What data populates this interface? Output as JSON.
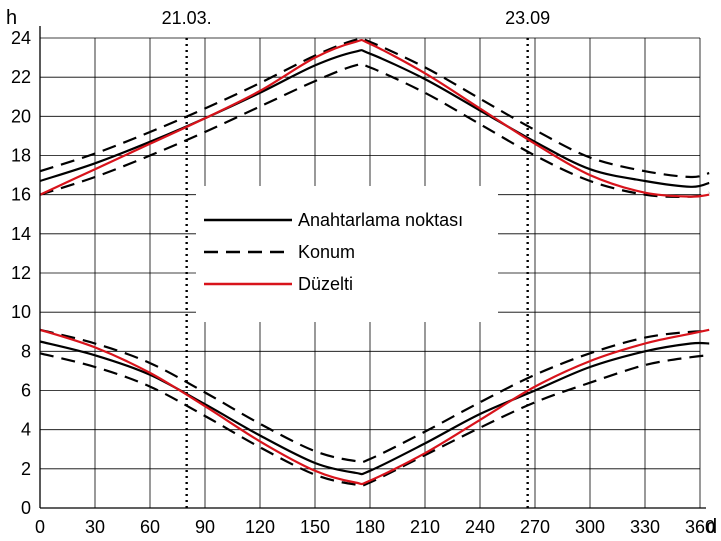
{
  "chart_data": {
    "type": "line",
    "xlabel": "d",
    "ylabel": "h",
    "xlim": [
      0,
      360
    ],
    "ylim": [
      0,
      24
    ],
    "x_ticks": [
      0,
      30,
      60,
      90,
      120,
      150,
      180,
      210,
      240,
      270,
      300,
      330,
      360
    ],
    "y_ticks": [
      0,
      2,
      4,
      6,
      8,
      10,
      12,
      14,
      16,
      18,
      20,
      22,
      24
    ],
    "grid": true,
    "legend_position": "center-left",
    "markers": [
      {
        "label": "21.03.",
        "x": 80
      },
      {
        "label": "23.09",
        "x": 266
      }
    ],
    "legend": [
      {
        "label": "Anahtarlama noktası",
        "color": "#000000",
        "dash": "solid"
      },
      {
        "label": "Konum",
        "color": "#000000",
        "dash": "dashed"
      },
      {
        "label": "Düzelti",
        "color": "#d8131b",
        "dash": "solid"
      }
    ],
    "x": [
      0,
      30,
      60,
      90,
      120,
      150,
      172,
      180,
      210,
      240,
      270,
      300,
      330,
      355,
      365
    ],
    "series": [
      {
        "name": "Anahtarlama noktası",
        "color": "#000000",
        "dash": "solid",
        "group": "upper",
        "values": [
          16.7,
          17.6,
          18.7,
          19.9,
          21.2,
          22.6,
          23.3,
          23.2,
          21.9,
          20.3,
          18.7,
          17.3,
          16.7,
          16.4,
          16.6
        ]
      },
      {
        "name": "Konum",
        "color": "#000000",
        "dash": "dashed",
        "group": "upper",
        "values": [
          17.2,
          18.1,
          19.2,
          20.4,
          21.7,
          23.1,
          23.9,
          23.8,
          22.5,
          20.9,
          19.3,
          17.9,
          17.2,
          16.9,
          17.1
        ]
      },
      {
        "name": "Konum",
        "color": "#000000",
        "dash": "dashed",
        "group": "upper",
        "values": [
          16.0,
          16.9,
          18.0,
          19.2,
          20.5,
          21.8,
          22.6,
          22.5,
          21.2,
          19.6,
          18.0,
          16.7,
          16.0,
          15.9,
          16.1
        ]
      },
      {
        "name": "Düzelti",
        "color": "#d8131b",
        "dash": "solid",
        "group": "upper",
        "values": [
          16.0,
          17.3,
          18.6,
          19.9,
          21.3,
          23.0,
          23.8,
          23.7,
          22.2,
          20.4,
          18.6,
          17.0,
          16.1,
          15.9,
          16.0
        ]
      },
      {
        "name": "Anahtarlama noktası",
        "color": "#000000",
        "dash": "solid",
        "group": "lower",
        "values": [
          8.5,
          7.8,
          6.8,
          5.3,
          3.7,
          2.3,
          1.8,
          1.9,
          3.3,
          4.8,
          6.0,
          7.2,
          8.0,
          8.4,
          8.4
        ]
      },
      {
        "name": "Konum",
        "color": "#000000",
        "dash": "dashed",
        "group": "lower",
        "values": [
          9.1,
          8.4,
          7.4,
          5.9,
          4.3,
          2.9,
          2.4,
          2.5,
          3.9,
          5.4,
          6.8,
          7.9,
          8.7,
          9.0,
          9.0
        ]
      },
      {
        "name": "Konum",
        "color": "#000000",
        "dash": "dashed",
        "group": "lower",
        "values": [
          7.9,
          7.2,
          6.2,
          4.7,
          3.1,
          1.7,
          1.2,
          1.3,
          2.7,
          4.1,
          5.4,
          6.4,
          7.3,
          7.7,
          7.8
        ]
      },
      {
        "name": "Düzelti",
        "color": "#d8131b",
        "dash": "solid",
        "group": "lower",
        "values": [
          9.1,
          8.2,
          6.9,
          5.2,
          3.4,
          1.9,
          1.3,
          1.4,
          2.8,
          4.5,
          6.2,
          7.5,
          8.4,
          8.9,
          9.1
        ]
      }
    ]
  }
}
